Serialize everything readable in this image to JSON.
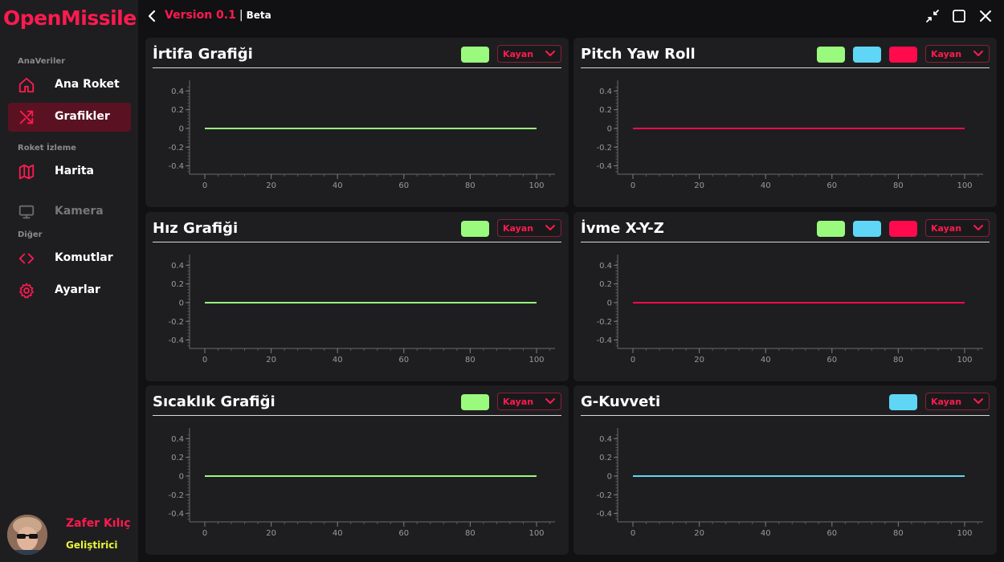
{
  "app": {
    "brand": "OpenMissile",
    "version": "Version 0.1",
    "separator": "|",
    "channel": "Beta"
  },
  "sidebar": {
    "sections": [
      "AnaVeriler",
      "Roket İzleme",
      "Diğer"
    ],
    "items": [
      {
        "label": "Ana Roket",
        "icon": "home-icon",
        "active": false,
        "disabled": false
      },
      {
        "label": "Grafikler",
        "icon": "shuffle-icon",
        "active": true,
        "disabled": false
      },
      {
        "label": "Harita",
        "icon": "map-icon",
        "active": false,
        "disabled": false
      },
      {
        "label": "Kamera",
        "icon": "monitor-icon",
        "active": false,
        "disabled": true
      },
      {
        "label": "Komutlar",
        "icon": "code-icon",
        "active": false,
        "disabled": false
      },
      {
        "label": "Ayarlar",
        "icon": "gear-icon",
        "active": false,
        "disabled": false
      }
    ]
  },
  "user": {
    "name": "Zafer Kılıç",
    "role": "Geliştirici"
  },
  "colors": {
    "accent": "#ff1a4f",
    "green": "#9afa7e",
    "cyan": "#5fd6f5",
    "red": "#ff0a4c",
    "role_yellow": "#e8f53a"
  },
  "panels": [
    {
      "title": "İrtifa Grafiği",
      "mode": "Kayan",
      "swatches": [
        "#9afa7e"
      ]
    },
    {
      "title": "Pitch Yaw Roll",
      "mode": "Kayan",
      "swatches": [
        "#9afa7e",
        "#5fd6f5",
        "#ff0a4c"
      ]
    },
    {
      "title": "Hız Grafiği",
      "mode": "Kayan",
      "swatches": [
        "#9afa7e"
      ]
    },
    {
      "title": "İvme X-Y-Z",
      "mode": "Kayan",
      "swatches": [
        "#9afa7e",
        "#5fd6f5",
        "#ff0a4c"
      ]
    },
    {
      "title": "Sıcaklık Grafiği",
      "mode": "Kayan",
      "swatches": [
        "#9afa7e"
      ]
    },
    {
      "title": "G-Kuvveti",
      "mode": "Kayan",
      "swatches": [
        "#5fd6f5"
      ]
    }
  ],
  "chart_data": [
    {
      "type": "line",
      "title": "İrtifa Grafiği",
      "x": [
        0,
        100
      ],
      "series": [
        {
          "color": "#9afa7e",
          "values": [
            0,
            0
          ]
        }
      ],
      "xticks": [
        "0",
        "20",
        "40",
        "60",
        "80",
        "100"
      ],
      "yticks": [
        "0.4",
        "0.2",
        "0",
        "-0.2",
        "-0.4"
      ],
      "xlim": [
        0,
        100
      ],
      "ylim": [
        -0.5,
        0.5
      ]
    },
    {
      "type": "line",
      "title": "Pitch Yaw Roll",
      "x": [
        0,
        100
      ],
      "series": [
        {
          "color": "#ff0a4c",
          "values": [
            0,
            0
          ]
        }
      ],
      "xticks": [
        "0",
        "20",
        "40",
        "60",
        "80",
        "100"
      ],
      "yticks": [
        "0.4",
        "0.2",
        "0",
        "-0.2",
        "-0.4"
      ],
      "xlim": [
        0,
        100
      ],
      "ylim": [
        -0.5,
        0.5
      ]
    },
    {
      "type": "line",
      "title": "Hız Grafiği",
      "x": [
        0,
        100
      ],
      "series": [
        {
          "color": "#9afa7e",
          "values": [
            0,
            0
          ]
        }
      ],
      "xticks": [
        "0",
        "20",
        "40",
        "60",
        "80",
        "100"
      ],
      "yticks": [
        "0.4",
        "0.2",
        "0",
        "-0.2",
        "-0.4"
      ],
      "xlim": [
        0,
        100
      ],
      "ylim": [
        -0.5,
        0.5
      ]
    },
    {
      "type": "line",
      "title": "İvme X-Y-Z",
      "x": [
        0,
        100
      ],
      "series": [
        {
          "color": "#ff0a4c",
          "values": [
            0,
            0
          ]
        }
      ],
      "xticks": [
        "0",
        "20",
        "40",
        "60",
        "80",
        "100"
      ],
      "yticks": [
        "0.4",
        "0.2",
        "0",
        "-0.2",
        "-0.4"
      ],
      "xlim": [
        0,
        100
      ],
      "ylim": [
        -0.5,
        0.5
      ]
    },
    {
      "type": "line",
      "title": "Sıcaklık Grafiği",
      "x": [
        0,
        100
      ],
      "series": [
        {
          "color": "#9afa7e",
          "values": [
            0,
            0
          ]
        }
      ],
      "xticks": [
        "0",
        "20",
        "40",
        "60",
        "80",
        "100"
      ],
      "yticks": [
        "0.4",
        "0.2",
        "0",
        "-0.2",
        "-0.4"
      ],
      "xlim": [
        0,
        100
      ],
      "ylim": [
        -0.5,
        0.5
      ]
    },
    {
      "type": "line",
      "title": "G-Kuvveti",
      "x": [
        0,
        100
      ],
      "series": [
        {
          "color": "#5fd6f5",
          "values": [
            0,
            0
          ]
        }
      ],
      "xticks": [
        "0",
        "20",
        "40",
        "60",
        "80",
        "100"
      ],
      "yticks": [
        "0.4",
        "0.2",
        "0",
        "-0.2",
        "-0.4"
      ],
      "xlim": [
        0,
        100
      ],
      "ylim": [
        -0.5,
        0.5
      ]
    }
  ]
}
